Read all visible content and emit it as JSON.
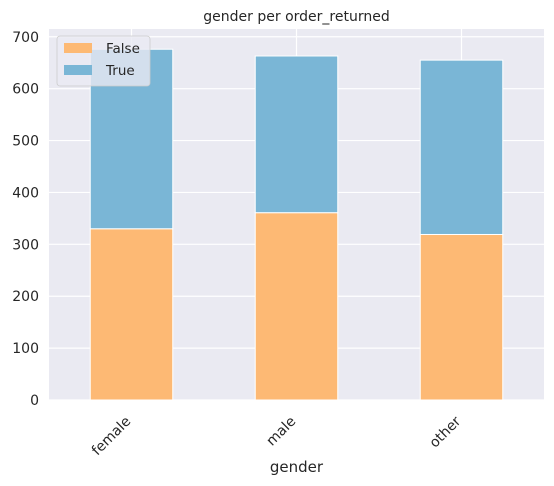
{
  "chart_data": {
    "type": "bar",
    "stacked": true,
    "title": "gender per order_returned",
    "xlabel": "gender",
    "ylabel": "",
    "categories": [
      "female",
      "male",
      "other"
    ],
    "series": [
      {
        "name": "False",
        "values": [
          330,
          361,
          319
        ],
        "color": "#fdb974"
      },
      {
        "name": "True",
        "values": [
          346,
          302,
          336
        ],
        "color": "#7ab6d6"
      }
    ],
    "ylim": [
      0,
      715
    ],
    "yticks": [
      0,
      100,
      200,
      300,
      400,
      500,
      600,
      700
    ],
    "grid": true,
    "legend_position": "top-left",
    "background": "#eaeaf2"
  }
}
